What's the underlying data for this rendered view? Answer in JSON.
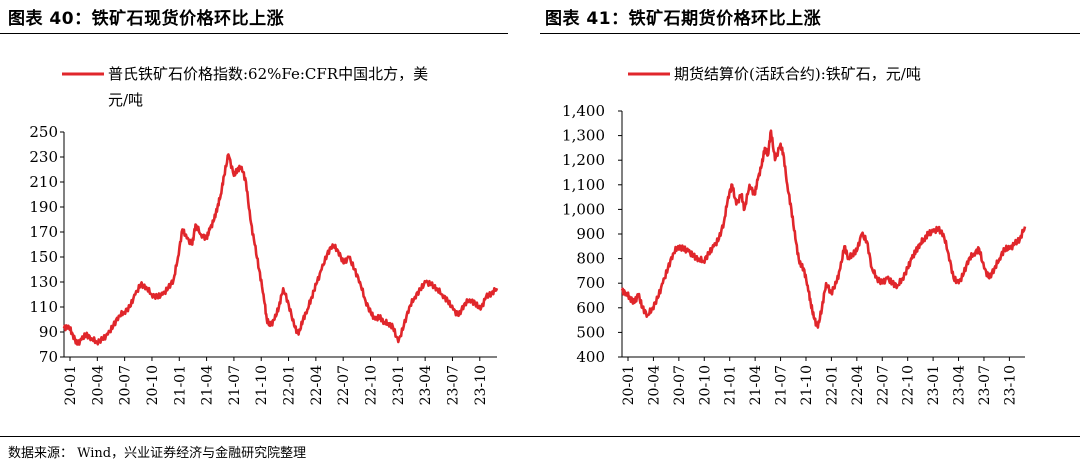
{
  "source": "数据来源： Wind，兴业证券经济与金融研究院整理",
  "colors": {
    "series": "#e0262b",
    "axis": "#000000"
  },
  "chart_data": [
    {
      "type": "line",
      "title": "图表 40：铁矿石现货价格环比上涨",
      "legend_line1": "普氏铁矿石价格指数:62%Fe:CFR中国北方，美",
      "legend_line2": "元/吨",
      "legend_position": "top",
      "ylim": [
        70,
        250
      ],
      "yticks": [
        "250",
        "230",
        "210",
        "190",
        "170",
        "150",
        "130",
        "110",
        "90",
        "70"
      ],
      "xticks": [
        "20-01",
        "20-04",
        "20-07",
        "20-10",
        "21-01",
        "21-04",
        "21-07",
        "21-10",
        "22-01",
        "22-04",
        "22-07",
        "22-10",
        "23-01",
        "23-04",
        "23-07",
        "23-10"
      ],
      "x_range": [
        2020.0,
        2023.95
      ],
      "grid": false,
      "series": [
        {
          "name": "普氏铁矿石价格指数:62%Fe:CFR中国北方，美元/吨",
          "x": [
            2020.0,
            2020.04,
            2020.08,
            2020.12,
            2020.16,
            2020.2,
            2020.25,
            2020.3,
            2020.35,
            2020.4,
            2020.45,
            2020.5,
            2020.55,
            2020.6,
            2020.65,
            2020.7,
            2020.75,
            2020.8,
            2020.85,
            2020.9,
            2020.95,
            2021.0,
            2021.04,
            2021.08,
            2021.12,
            2021.17,
            2021.2,
            2021.25,
            2021.3,
            2021.33,
            2021.37,
            2021.4,
            2021.43,
            2021.46,
            2021.5,
            2021.55,
            2021.58,
            2021.62,
            2021.66,
            2021.7,
            2021.74,
            2021.78,
            2021.82,
            2021.85,
            2021.88,
            2021.92,
            2021.96,
            2022.0,
            2022.05,
            2022.1,
            2022.14,
            2022.18,
            2022.22,
            2022.26,
            2022.3,
            2022.35,
            2022.4,
            2022.45,
            2022.5,
            2022.55,
            2022.6,
            2022.65,
            2022.7,
            2022.75,
            2022.8,
            2022.84,
            2022.88,
            2022.92,
            2022.96,
            2023.0,
            2023.05,
            2023.1,
            2023.15,
            2023.2,
            2023.25,
            2023.3,
            2023.35,
            2023.4,
            2023.45,
            2023.5,
            2023.55,
            2023.6,
            2023.65,
            2023.7,
            2023.75,
            2023.8,
            2023.85,
            2023.9,
            2023.95
          ],
          "values": [
            93,
            95,
            88,
            80,
            84,
            88,
            85,
            82,
            84,
            88,
            95,
            103,
            106,
            110,
            120,
            128,
            126,
            120,
            118,
            120,
            125,
            132,
            150,
            172,
            165,
            160,
            176,
            168,
            165,
            172,
            180,
            190,
            200,
            215,
            232,
            215,
            220,
            222,
            210,
            180,
            160,
            140,
            120,
            100,
            95,
            100,
            110,
            125,
            112,
            95,
            88,
            100,
            108,
            118,
            128,
            140,
            152,
            160,
            155,
            145,
            150,
            140,
            130,
            115,
            105,
            100,
            102,
            98,
            97,
            94,
            82,
            95,
            110,
            118,
            124,
            130,
            128,
            125,
            120,
            115,
            108,
            103,
            112,
            116,
            113,
            108,
            118,
            121,
            125
          ]
        }
      ]
    },
    {
      "type": "line",
      "title": "图表 41：铁矿石期货价格环比上涨",
      "legend_line1": "期货结算价(活跃合约):铁矿石，元/吨",
      "legend_line2": "",
      "legend_position": "top",
      "ylim": [
        400,
        1400
      ],
      "yticks": [
        "1,400",
        "1,300",
        "1,200",
        "1,100",
        "1,000",
        "900",
        "800",
        "700",
        "600",
        "500",
        "400"
      ],
      "xticks": [
        "20-01",
        "20-04",
        "20-07",
        "20-10",
        "21-01",
        "21-04",
        "21-07",
        "21-10",
        "22-01",
        "22-04",
        "22-07",
        "22-10",
        "23-01",
        "23-04",
        "23-07",
        "23-10"
      ],
      "x_range": [
        2020.0,
        2023.95
      ],
      "grid": false,
      "series": [
        {
          "name": "期货结算价(活跃合约):铁矿石，元/吨",
          "x": [
            2020.0,
            2020.04,
            2020.08,
            2020.12,
            2020.16,
            2020.2,
            2020.25,
            2020.3,
            2020.35,
            2020.4,
            2020.45,
            2020.5,
            2020.55,
            2020.6,
            2020.65,
            2020.7,
            2020.75,
            2020.8,
            2020.85,
            2020.9,
            2020.95,
            2021.0,
            2021.04,
            2021.08,
            2021.12,
            2021.17,
            2021.2,
            2021.25,
            2021.3,
            2021.33,
            2021.37,
            2021.4,
            2021.43,
            2021.46,
            2021.5,
            2021.55,
            2021.58,
            2021.62,
            2021.66,
            2021.7,
            2021.74,
            2021.78,
            2021.82,
            2021.85,
            2021.88,
            2021.92,
            2021.96,
            2022.0,
            2022.05,
            2022.1,
            2022.14,
            2022.18,
            2022.22,
            2022.26,
            2022.3,
            2022.35,
            2022.4,
            2022.45,
            2022.5,
            2022.55,
            2022.6,
            2022.65,
            2022.7,
            2022.75,
            2022.8,
            2022.84,
            2022.88,
            2022.92,
            2022.96,
            2023.0,
            2023.05,
            2023.1,
            2023.15,
            2023.2,
            2023.25,
            2023.3,
            2023.35,
            2023.4,
            2023.45,
            2023.5,
            2023.55,
            2023.6,
            2023.65,
            2023.7,
            2023.75,
            2023.8,
            2023.85,
            2023.9,
            2023.95
          ],
          "values": [
            670,
            660,
            640,
            620,
            655,
            600,
            570,
            600,
            640,
            700,
            760,
            820,
            850,
            840,
            830,
            810,
            800,
            790,
            820,
            850,
            880,
            950,
            1050,
            1100,
            1020,
            1060,
            1000,
            1100,
            1060,
            1120,
            1180,
            1250,
            1220,
            1320,
            1200,
            1260,
            1230,
            1100,
            1000,
            880,
            780,
            760,
            690,
            620,
            560,
            520,
            600,
            700,
            660,
            700,
            760,
            850,
            800,
            820,
            830,
            900,
            870,
            760,
            720,
            700,
            720,
            700,
            690,
            720,
            760,
            800,
            830,
            860,
            880,
            900,
            910,
            920,
            900,
            820,
            720,
            700,
            740,
            800,
            820,
            840,
            760,
            720,
            760,
            800,
            840,
            840,
            860,
            880,
            930
          ]
        }
      ]
    }
  ]
}
